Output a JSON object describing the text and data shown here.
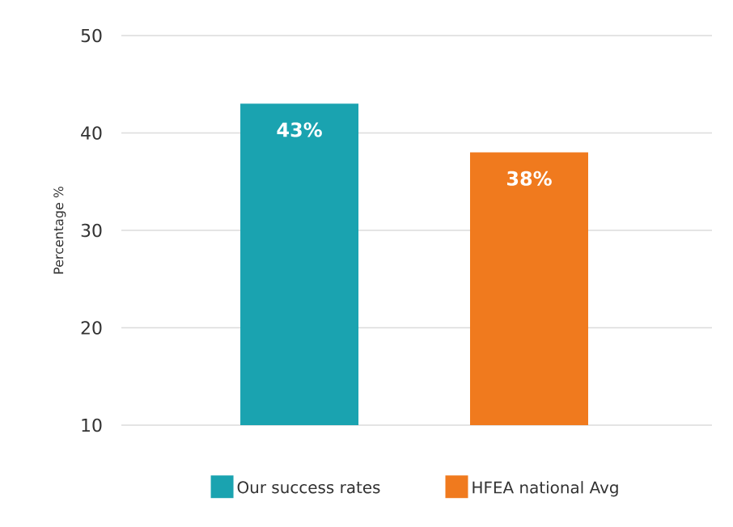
{
  "chart_data": {
    "type": "bar",
    "ylabel": "Percentage %",
    "categories": [
      null,
      null
    ],
    "series": [
      {
        "name": "Our success rates",
        "color": "#1aa3b0",
        "values": [
          43,
          null
        ],
        "value_labels": [
          "43%",
          null
        ]
      },
      {
        "name": "HFEA national Avg",
        "color": "#f07a1e",
        "values": [
          null,
          38
        ],
        "value_labels": [
          null,
          "38%"
        ]
      }
    ],
    "ylim": [
      10,
      50
    ],
    "yticks": [
      10,
      20,
      30,
      40,
      50
    ],
    "grid": "y",
    "legend": "bottom"
  }
}
